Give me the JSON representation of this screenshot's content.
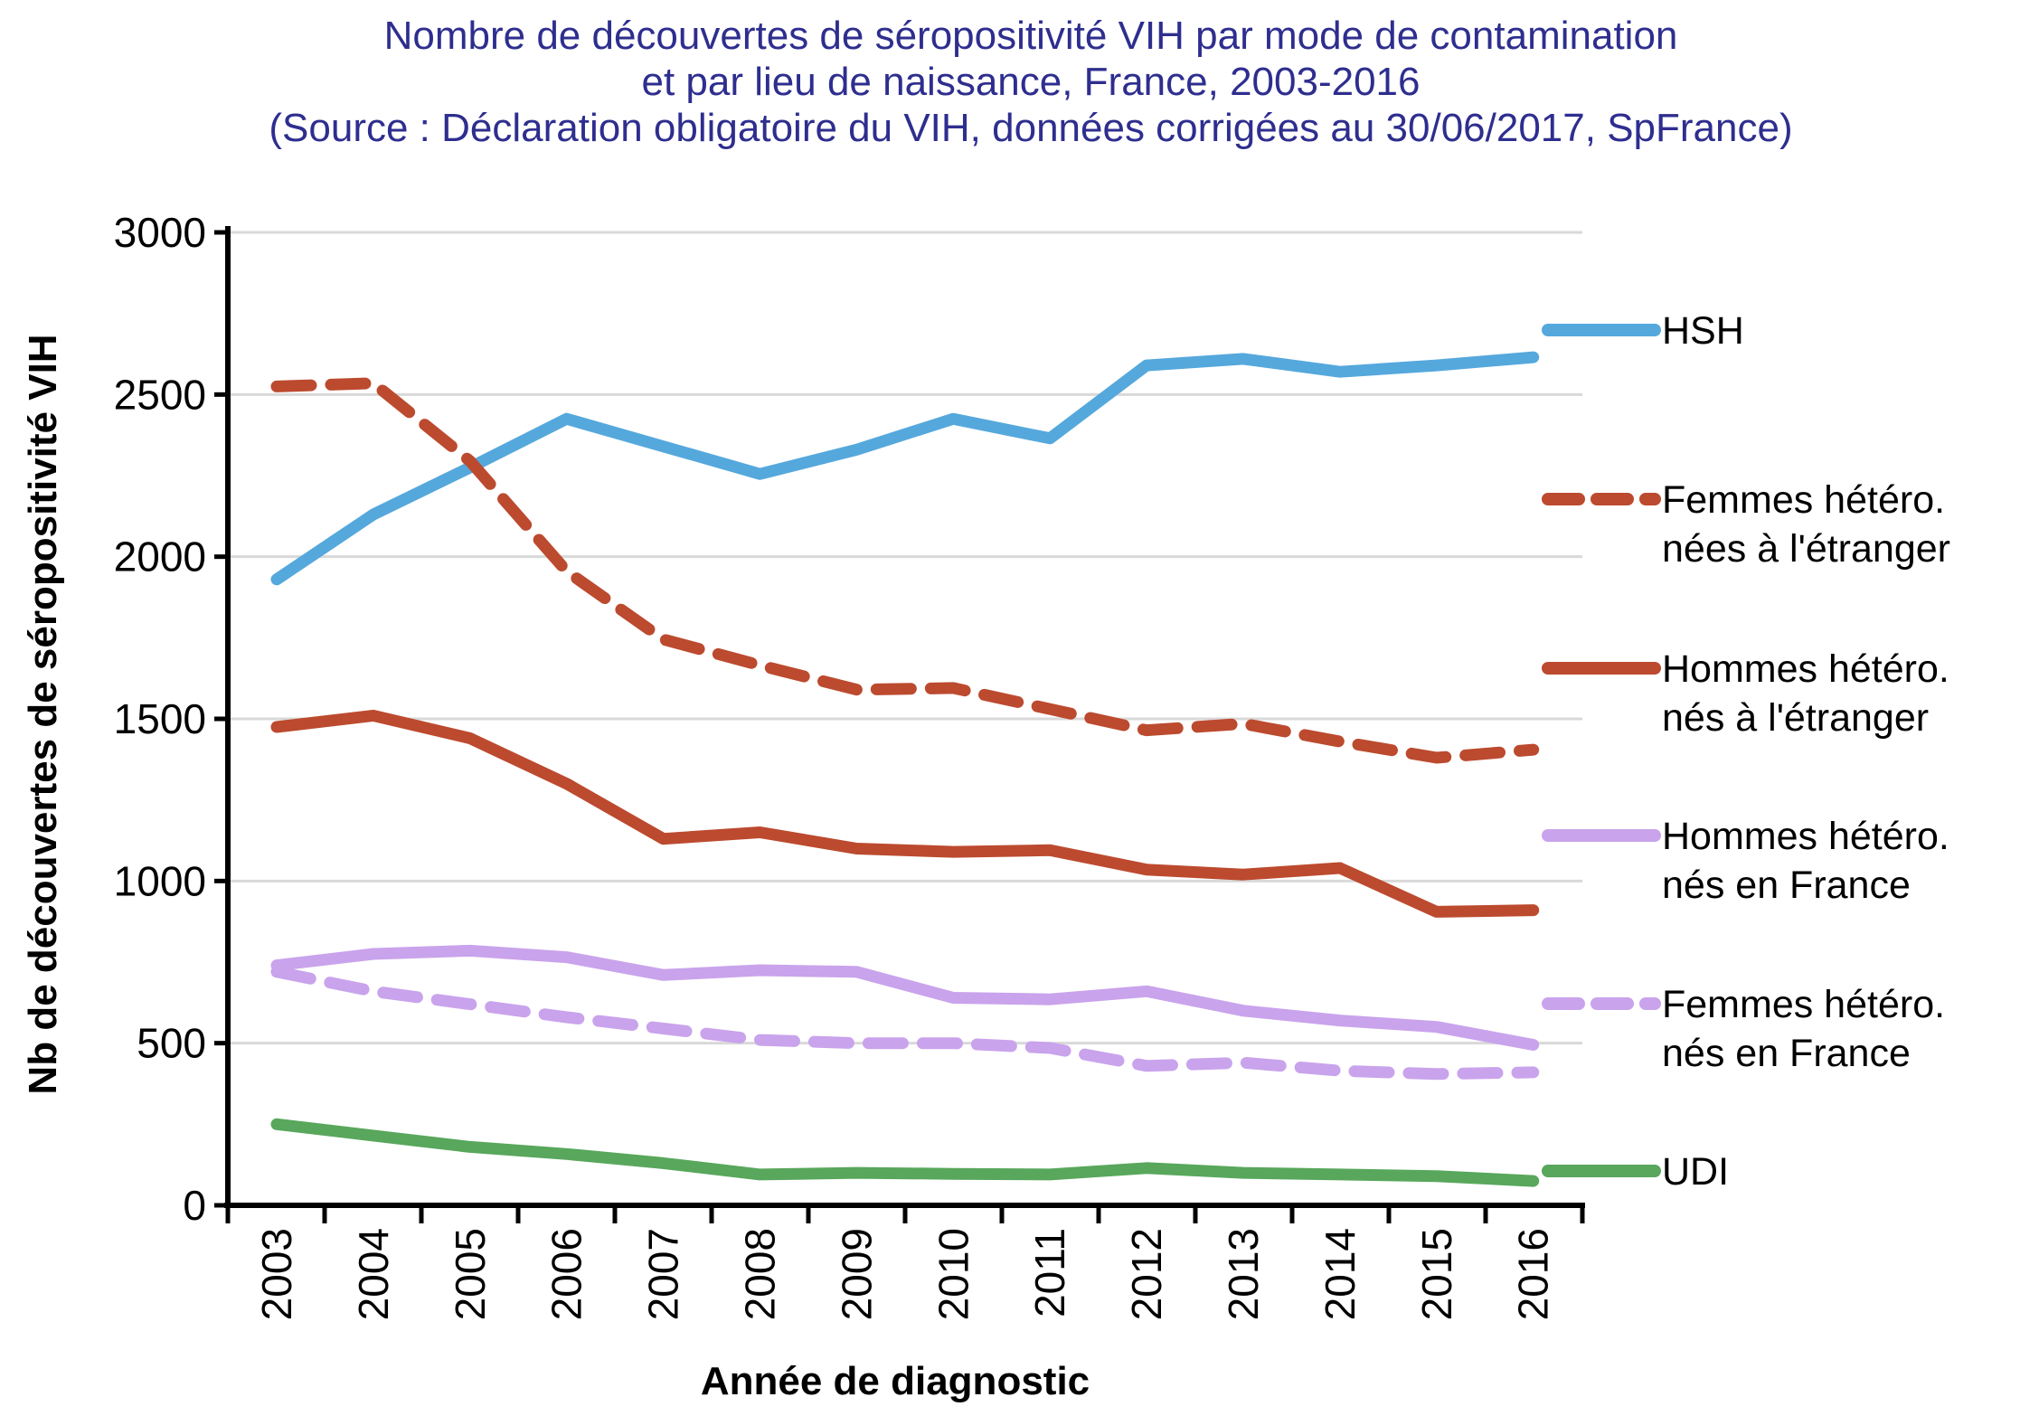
{
  "title": {
    "line1": "Nombre de découvertes de séropositivité VIH par mode de contamination",
    "line2": "et par lieu de naissance, France, 2003-2016",
    "line3": "(Source : Déclaration obligatoire du VIH, données corrigées au 30/06/2017, SpFrance)",
    "color": "#2E2E8F"
  },
  "colors": {
    "blue": "#55A8DC",
    "red": "#BC4A2F",
    "purple": "#C9A3EC",
    "green": "#58A75C",
    "grid": "#D9D9D9",
    "axis": "#000000",
    "text": "#000000",
    "background": "#FFFFFF"
  },
  "chart_data": {
    "type": "line",
    "x": [
      "2003",
      "2004",
      "2005",
      "2006",
      "2007",
      "2008",
      "2009",
      "2010",
      "2011",
      "2012",
      "2013",
      "2014",
      "2015",
      "2016"
    ],
    "xlabel": "Année de diagnostic",
    "ylabel": "Nb de découvertes de séropositivité VIH",
    "ylim": [
      0,
      3000
    ],
    "yticks": [
      0,
      500,
      1000,
      1500,
      2000,
      2500,
      3000
    ],
    "grid": true,
    "legend_position": "right",
    "series": [
      {
        "name": "HSH",
        "legend_lines": [
          "HSH"
        ],
        "color": "blue",
        "dashed": false,
        "values": [
          1930,
          2130,
          2275,
          2425,
          2340,
          2255,
          2330,
          2425,
          2365,
          2590,
          2610,
          2570,
          2590,
          2615
        ]
      },
      {
        "name": "Femmes hétéro. nées à l'étranger",
        "legend_lines": [
          "Femmes hétéro.",
          "nées à l'étranger"
        ],
        "color": "red",
        "dashed": true,
        "values": [
          2525,
          2535,
          2295,
          1955,
          1745,
          1665,
          1590,
          1595,
          1530,
          1465,
          1485,
          1430,
          1380,
          1405
        ]
      },
      {
        "name": "Hommes hétéro. nés à l'étranger",
        "legend_lines": [
          "Hommes hétéro.",
          "nés à l'étranger"
        ],
        "color": "red",
        "dashed": false,
        "values": [
          1475,
          1510,
          1440,
          1300,
          1130,
          1150,
          1100,
          1090,
          1095,
          1035,
          1020,
          1040,
          905,
          910
        ]
      },
      {
        "name": "Hommes hétéro. nés en France",
        "legend_lines": [
          "Hommes hétéro.",
          "nés en France"
        ],
        "color": "purple",
        "dashed": false,
        "values": [
          740,
          775,
          785,
          765,
          710,
          725,
          720,
          640,
          635,
          660,
          600,
          570,
          550,
          495
        ]
      },
      {
        "name": "Femmes hétéro. nés en France",
        "legend_lines": [
          "Femmes hétéro.",
          "nés en France"
        ],
        "color": "purple",
        "dashed": true,
        "values": [
          720,
          660,
          620,
          580,
          545,
          510,
          500,
          500,
          485,
          430,
          440,
          415,
          405,
          410
        ]
      },
      {
        "name": "UDI",
        "legend_lines": [
          "UDI"
        ],
        "color": "green",
        "dashed": false,
        "values": [
          250,
          215,
          180,
          158,
          130,
          95,
          100,
          97,
          95,
          115,
          100,
          95,
          90,
          75
        ]
      }
    ]
  }
}
